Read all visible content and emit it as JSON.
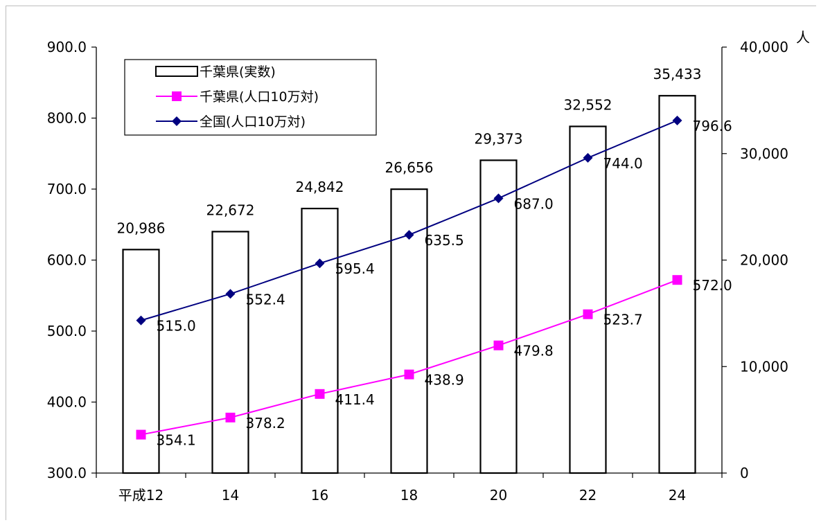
{
  "chart_data": {
    "type": "bar",
    "categories": [
      "平成12",
      "14",
      "16",
      "18",
      "20",
      "22",
      "24"
    ],
    "series": [
      {
        "name": "千葉県(実数)",
        "kind": "bar",
        "axis": "right",
        "color": "#000000",
        "values": [
          20986,
          22672,
          24842,
          26656,
          29373,
          32552,
          35433
        ],
        "labels": [
          "20,986",
          "22,672",
          "24,842",
          "26,656",
          "29,373",
          "32,552",
          "35,433"
        ]
      },
      {
        "name": "千葉県(人口10万対)",
        "kind": "line",
        "axis": "left",
        "color": "#ff00ff",
        "marker": "square",
        "values": [
          354.1,
          378.2,
          411.4,
          438.9,
          479.8,
          523.7,
          572.0
        ],
        "labels": [
          "354.1",
          "378.2",
          "411.4",
          "438.9",
          "479.8",
          "523.7",
          "572.0"
        ]
      },
      {
        "name": "全国(人口10万対)",
        "kind": "line",
        "axis": "left",
        "color": "#000080",
        "marker": "diamond",
        "values": [
          515.0,
          552.4,
          595.4,
          635.5,
          687.0,
          744.0,
          796.6
        ],
        "labels": [
          "515.0",
          "552.4",
          "595.4",
          "635.5",
          "687.0",
          "744.0",
          "796.6"
        ]
      }
    ],
    "y_left": {
      "range": [
        300,
        900
      ],
      "ticks": [
        300,
        400,
        500,
        600,
        700,
        800,
        900
      ],
      "tick_labels": [
        "300.0",
        "400.0",
        "500.0",
        "600.0",
        "700.0",
        "800.0",
        "900.0"
      ]
    },
    "y_right": {
      "range": [
        0,
        40000
      ],
      "ticks": [
        0,
        10000,
        20000,
        30000,
        40000
      ],
      "tick_labels": [
        "0",
        "10,000",
        "20,000",
        "30,000",
        "40,000"
      ],
      "unit": "人"
    },
    "legend": {
      "position": "top-left"
    },
    "grid": false
  }
}
